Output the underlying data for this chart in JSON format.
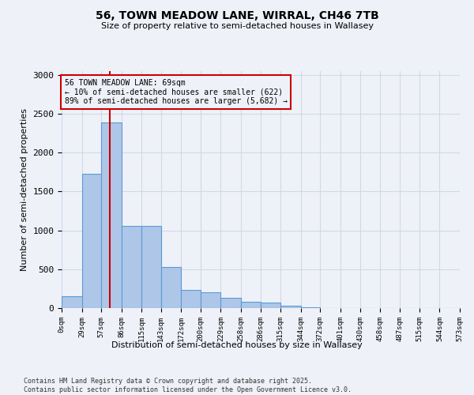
{
  "title_line1": "56, TOWN MEADOW LANE, WIRRAL, CH46 7TB",
  "title_line2": "Size of property relative to semi-detached houses in Wallasey",
  "xlabel": "Distribution of semi-detached houses by size in Wallasey",
  "ylabel": "Number of semi-detached properties",
  "footnote1": "Contains HM Land Registry data © Crown copyright and database right 2025.",
  "footnote2": "Contains public sector information licensed under the Open Government Licence v3.0.",
  "annotation_title": "56 TOWN MEADOW LANE: 69sqm",
  "annotation_line2": "← 10% of semi-detached houses are smaller (622)",
  "annotation_line3": "89% of semi-detached houses are larger (5,682) →",
  "property_size": 69,
  "bar_edges": [
    0,
    29,
    57,
    86,
    115,
    143,
    172,
    200,
    229,
    258,
    286,
    315,
    344,
    372,
    401,
    430,
    458,
    487,
    515,
    544,
    573
  ],
  "bar_heights": [
    150,
    1730,
    2390,
    1060,
    1060,
    530,
    230,
    200,
    130,
    80,
    70,
    30,
    10,
    5,
    3,
    2,
    1,
    1,
    0,
    0
  ],
  "bar_color": "#aec6e8",
  "bar_edge_color": "#5b9bd5",
  "highlight_line_color": "#cc0000",
  "annotation_box_color": "#cc0000",
  "grid_color": "#d0d8e8",
  "background_color": "#eef2f8",
  "ylim": [
    0,
    3050
  ],
  "yticks": [
    0,
    500,
    1000,
    1500,
    2000,
    2500,
    3000
  ]
}
